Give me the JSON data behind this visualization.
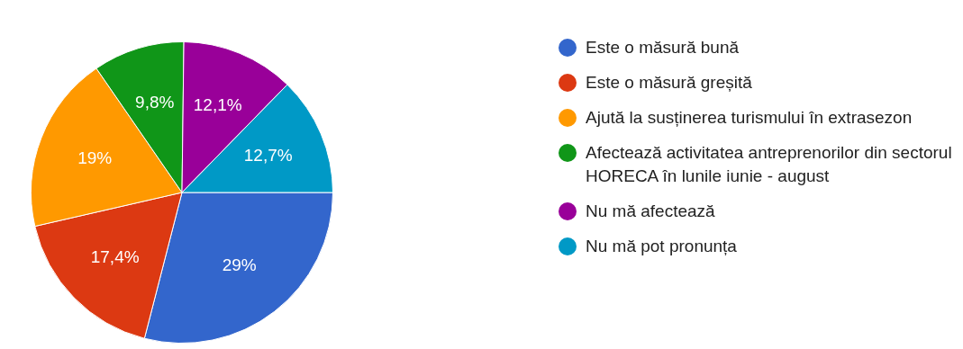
{
  "chart_data": {
    "type": "pie",
    "categories": [
      "Este o măsură bună",
      "Este o măsură greșită",
      "Ajută la susținerea turismului în extrasezon",
      "Afectează activitatea antreprenorilor din sectorul HORECA în lunile iunie - august",
      "Nu mă afectează",
      "Nu mă pot pronunța"
    ],
    "values": [
      29,
      17.4,
      19,
      9.8,
      12.1,
      12.7
    ],
    "value_labels": [
      "29%",
      "17,4%",
      "19%",
      "9,8%",
      "12,1%",
      "12,7%"
    ],
    "colors": [
      "#3366cc",
      "#dc3912",
      "#ff9900",
      "#109618",
      "#990099",
      "#0099c6"
    ],
    "legend": "right"
  }
}
